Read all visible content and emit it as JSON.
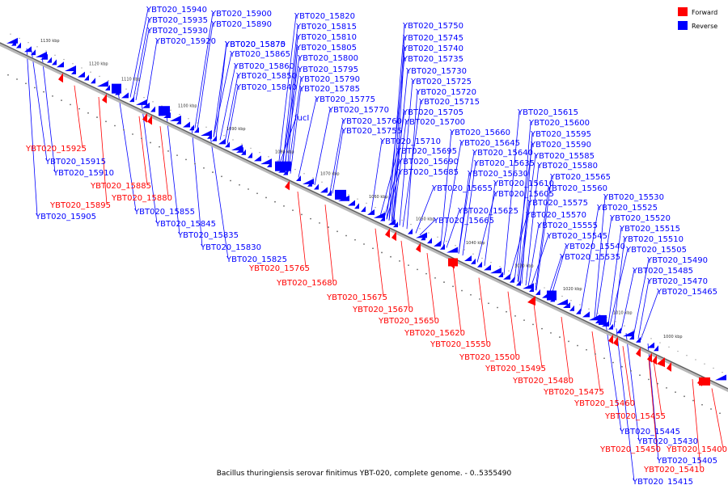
{
  "caption": "Bacillus thuringiensis serovar finitimus YBT-020, complete genome. - 0..5355490",
  "legend": [
    {
      "label": "Forward",
      "color": "#ff0000"
    },
    {
      "label": "Reverse",
      "color": "#0000ff"
    }
  ],
  "colors": {
    "forward": "#ff0000",
    "reverse": "#0000ff",
    "backbone": "#999999"
  },
  "ticks": [
    "1130 kbp",
    "1120 kbp",
    "1110 kbp",
    "1100 kbp",
    "1090 kbp",
    "1080 kbp",
    "1070 kbp",
    "1060 kbp",
    "1050 kbp",
    "1040 kbp",
    "1030 kbp",
    "1020 kbp",
    "1010 kbp",
    "1000 kbp"
  ],
  "reverse_labels": [
    "YBT020_15940",
    "YBT020_15935",
    "YBT020_15930",
    "YBT020_15920",
    "YBT020_15900",
    "YBT020_15890",
    "YBT020_15875",
    "YBT020_15870",
    "YBT020_15865",
    "YBT020_15860",
    "YBT020_15850",
    "YBT020_15840",
    "YBT020_15820",
    "YBT020_15815",
    "YBT020_15810",
    "YBT020_15805",
    "YBT020_15800",
    "YBT020_15795",
    "YBT020_15790",
    "YBT020_15785",
    "YBT020_15775",
    "YBT020_15770",
    "YBT020_15760",
    "YBT020_15755",
    "fucI",
    "YBT020_15750",
    "YBT020_15745",
    "YBT020_15740",
    "YBT020_15735",
    "YBT020_15730",
    "YBT020_15725",
    "YBT020_15720",
    "YBT020_15715",
    "YBT020_15705",
    "YBT020_15700",
    "YBT020_15710",
    "YBT020_15695",
    "YBT020_15690",
    "YBT020_15685",
    "YBT020_15660",
    "YBT020_15645",
    "YBT020_15640",
    "YBT020_15635",
    "YBT020_15630",
    "YBT020_15655",
    "YBT020_15665",
    "YBT020_15625",
    "YBT020_15610",
    "YBT020_15605",
    "YBT020_15615",
    "YBT020_15600",
    "YBT020_15595",
    "YBT020_15590",
    "YBT020_15585",
    "YBT020_15580",
    "YBT020_15575",
    "YBT020_15570",
    "YBT020_15565",
    "YBT020_15560",
    "YBT020_15555",
    "YBT020_15545",
    "YBT020_15540",
    "YBT020_15535",
    "YBT020_15530",
    "YBT020_15525",
    "YBT020_15520",
    "YBT020_15515",
    "YBT020_15510",
    "YBT020_15505",
    "YBT020_15490",
    "YBT020_15485",
    "YBT020_15470",
    "YBT020_15465",
    "YBT020_15915",
    "YBT020_15910",
    "YBT020_15905",
    "YBT020_15855",
    "YBT020_15845",
    "YBT020_15835",
    "YBT020_15830",
    "YBT020_15825",
    "YBT020_15445",
    "YBT020_15430",
    "YBT020_15405",
    "YBT020_15415"
  ],
  "forward_labels": [
    "YBT020_15925",
    "YBT020_15885",
    "YBT020_15880",
    "YBT020_15895",
    "YBT020_15765",
    "YBT020_15680",
    "YBT020_15675",
    "YBT020_15670",
    "YBT020_15650",
    "YBT020_15620",
    "YBT020_15550",
    "YBT020_15500",
    "YBT020_15495",
    "YBT020_15480",
    "YBT020_15475",
    "YBT020_15460",
    "YBT020_15455",
    "YBT020_15450",
    "YBT020_15400",
    "YBT020_15410"
  ]
}
